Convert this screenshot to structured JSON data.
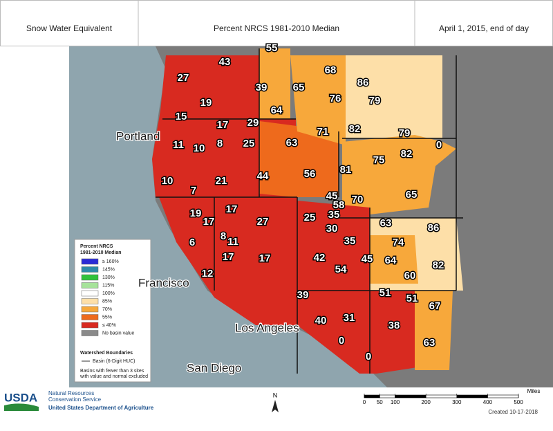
{
  "header": {
    "left": "Snow Water Equivalent",
    "center": "Percent NRCS 1981-2010 Median",
    "right": "April 1, 2015, end of day"
  },
  "cities": [
    "Portland",
    "Francisco",
    "Los Angeles",
    "San Diego"
  ],
  "basins": [
    55,
    43,
    27,
    68,
    86,
    39,
    65,
    76,
    79,
    19,
    64,
    15,
    17,
    29,
    71,
    82,
    79,
    0,
    11,
    10,
    8,
    25,
    63,
    82,
    75,
    81,
    56,
    10,
    21,
    44,
    7,
    65,
    45,
    70,
    58,
    35,
    19,
    17,
    25,
    63,
    86,
    17,
    27,
    30,
    8,
    11,
    6,
    35,
    74,
    42,
    45,
    64,
    82,
    17,
    17,
    54,
    60,
    12,
    39,
    51,
    51,
    67,
    40,
    31,
    38,
    0,
    63,
    0
  ],
  "legend": {
    "title": [
      "Percent NRCS",
      "1981-2010 Median"
    ],
    "items": [
      {
        "label": "≥ 160%",
        "color": "#2b2bd6"
      },
      {
        "label": "145%",
        "color": "#2f8aa8"
      },
      {
        "label": "130%",
        "color": "#2fc23a"
      },
      {
        "label": "115%",
        "color": "#a6e39a"
      },
      {
        "label": "100%",
        "color": "#ffffff"
      },
      {
        "label": "85%",
        "color": "#fddfa8"
      },
      {
        "label": "70%",
        "color": "#f7a83b"
      },
      {
        "label": "55%",
        "color": "#ee6a1c"
      },
      {
        "label": "≤ 40%",
        "color": "#d82a20"
      },
      {
        "label": "No basin value",
        "color": "#8a8a8a"
      }
    ],
    "boundaries_title": "Watershed Boundaries",
    "boundary": "Basin (6-Digit HUC)",
    "note": [
      "Basins with fewer than 3 sites",
      "with value and normal excluded"
    ]
  },
  "footer": {
    "agency": "USDA",
    "service": [
      "Natural Resources",
      "Conservation Service"
    ],
    "department": "United States Department of Agriculture",
    "north": "N",
    "created": "Created 10-17-2018"
  },
  "scale": {
    "ticks": [
      0,
      50,
      100,
      200,
      300,
      400,
      500
    ],
    "unit": "Miles"
  }
}
